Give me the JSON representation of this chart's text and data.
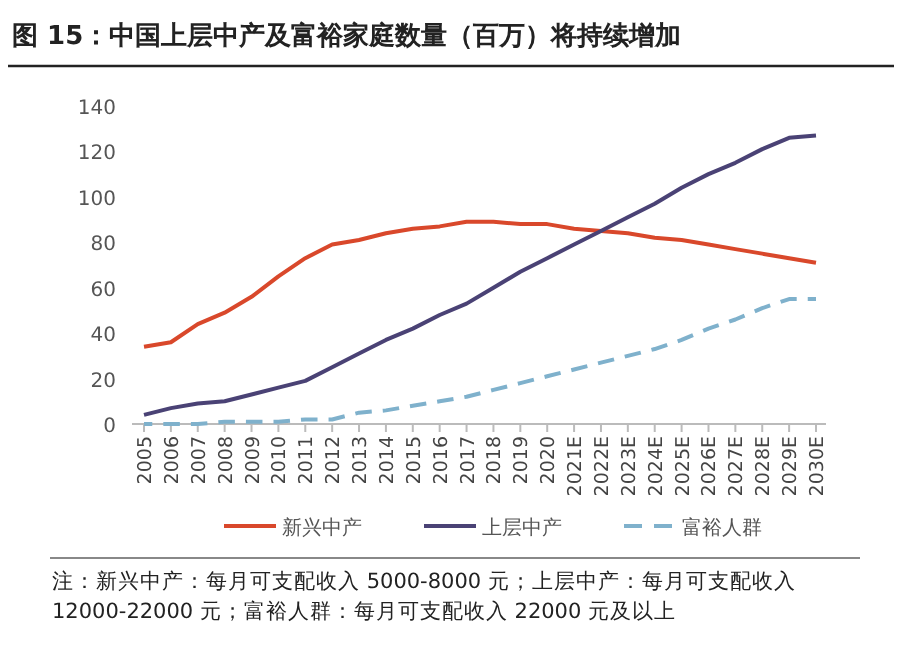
{
  "chart_data": {
    "type": "line",
    "title": "图 15：中国上层中产及富裕家庭数量（百万）将持续增加",
    "categories": [
      "2005",
      "2006",
      "2007",
      "2008",
      "2009",
      "2010",
      "2011",
      "2012",
      "2013",
      "2014",
      "2015",
      "2016",
      "2017",
      "2018",
      "2019",
      "2020",
      "2021E",
      "2022E",
      "2023E",
      "2024E",
      "2025E",
      "2026E",
      "2027E",
      "2028E",
      "2029E",
      "2030E"
    ],
    "series": [
      {
        "name": "新兴中产",
        "color": "#d9482b",
        "line_style": "solid",
        "values": [
          34,
          36,
          44,
          49,
          56,
          65,
          73,
          79,
          81,
          84,
          86,
          87,
          89,
          89,
          88,
          88,
          86,
          85,
          84,
          82,
          81,
          79,
          77,
          75,
          73,
          71
        ]
      },
      {
        "name": "上层中产",
        "color": "#4a4275",
        "line_style": "solid",
        "values": [
          4,
          7,
          9,
          10,
          13,
          16,
          19,
          25,
          31,
          37,
          42,
          48,
          53,
          60,
          67,
          73,
          79,
          85,
          91,
          97,
          104,
          110,
          115,
          121,
          126,
          127
        ]
      },
      {
        "name": "富裕人群",
        "color": "#7fb1cc",
        "line_style": "dashed",
        "values": [
          0,
          0,
          0,
          1,
          1,
          1,
          2,
          2,
          5,
          6,
          8,
          10,
          12,
          15,
          18,
          21,
          24,
          27,
          30,
          33,
          37,
          42,
          46,
          51,
          55,
          55
        ]
      }
    ],
    "ylim": [
      0,
      140
    ],
    "yticks": [
      0,
      20,
      40,
      60,
      80,
      100,
      120,
      140
    ],
    "grid": false,
    "legend": "bottom",
    "marker": "none",
    "annotations": [
      "注：新兴中产：每月可支配收入 5000-8000 元；上层中产：每月可支配收入 12000-22000 元；富裕人群：每月可支配收入 22000 元及以上"
    ]
  }
}
